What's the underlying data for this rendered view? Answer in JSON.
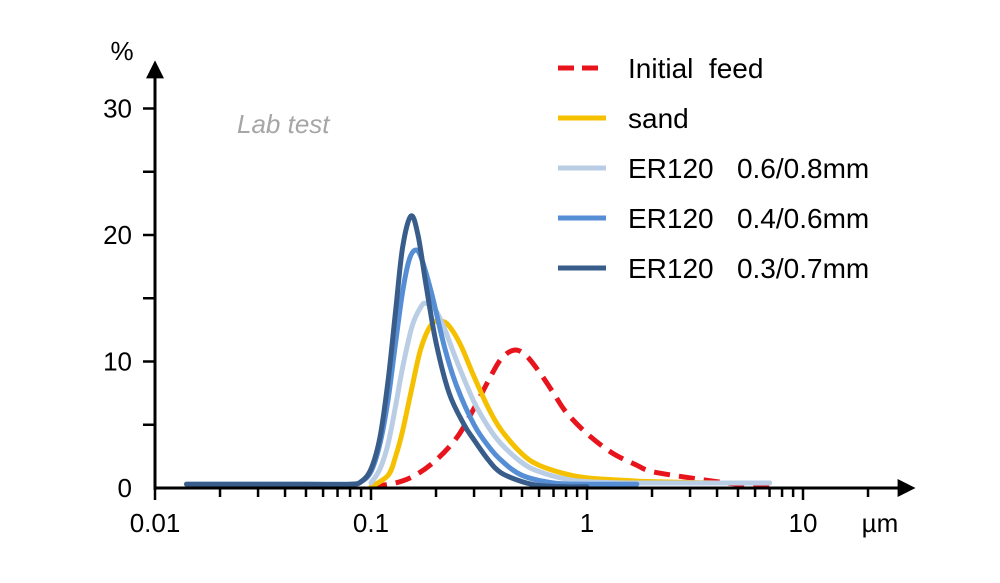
{
  "chart_data": {
    "type": "line",
    "title": "",
    "xlabel": "µm",
    "ylabel": "%",
    "x_scale": "log",
    "xlim": [
      0.01,
      30
    ],
    "ylim": [
      0,
      33
    ],
    "x_ticks": [
      {
        "value": 0.01,
        "label": "0.01"
      },
      {
        "value": 0.1,
        "label": "0.1"
      },
      {
        "value": 1,
        "label": "1"
      },
      {
        "value": 10,
        "label": "10"
      }
    ],
    "y_ticks": [
      {
        "value": 0,
        "label": "0"
      },
      {
        "value": 10,
        "label": "10"
      },
      {
        "value": 20,
        "label": "20"
      },
      {
        "value": 30,
        "label": "30"
      }
    ],
    "grid": false,
    "legend_position": "top-right",
    "annotation": "Lab test",
    "series": [
      {
        "name": "Initial  feed",
        "color": "#e8141c",
        "dashed": true,
        "x": [
          0.1,
          0.13,
          0.16,
          0.2,
          0.25,
          0.3,
          0.35,
          0.4,
          0.46,
          0.52,
          0.6,
          0.7,
          0.8,
          1,
          1.3,
          1.7,
          2,
          3,
          4,
          5,
          7
        ],
        "y": [
          0.1,
          0.4,
          1.0,
          2.2,
          4,
          6.3,
          8.5,
          10.2,
          10.9,
          10.5,
          9.2,
          7.5,
          6,
          4.3,
          2.8,
          1.8,
          1.3,
          0.8,
          0.5,
          0.3,
          0.2
        ]
      },
      {
        "name": "sand",
        "color": "#f5c000",
        "dashed": false,
        "x": [
          0.1,
          0.12,
          0.13,
          0.14,
          0.155,
          0.17,
          0.19,
          0.21,
          0.23,
          0.26,
          0.3,
          0.35,
          0.4,
          0.5,
          0.6,
          0.8,
          1,
          1.5,
          2,
          4,
          7
        ],
        "y": [
          0.1,
          1,
          2.5,
          4.5,
          8,
          11,
          12.9,
          13.2,
          12.8,
          11.3,
          8.8,
          6.3,
          4.6,
          2.7,
          1.8,
          1.1,
          0.8,
          0.6,
          0.5,
          0.4,
          0.4
        ]
      },
      {
        "name": "ER120   0.6/0.8mm",
        "color": "#b9cde5",
        "dashed": false,
        "x": [
          0.1,
          0.11,
          0.12,
          0.13,
          0.14,
          0.155,
          0.17,
          0.18,
          0.2,
          0.22,
          0.25,
          0.3,
          0.35,
          0.4,
          0.5,
          0.6,
          0.8,
          1,
          1.5,
          3,
          7
        ],
        "y": [
          0.4,
          1.5,
          3.5,
          6.5,
          9.5,
          12.8,
          14.3,
          14.6,
          14,
          12.5,
          10,
          6.8,
          4.8,
          3.5,
          2,
          1.3,
          0.7,
          0.5,
          0.4,
          0.4,
          0.4
        ]
      },
      {
        "name": "ER120   0.4/0.6mm",
        "color": "#558ed5",
        "dashed": false,
        "x": [
          0.014,
          0.05,
          0.08,
          0.09,
          0.1,
          0.11,
          0.12,
          0.13,
          0.14,
          0.15,
          0.16,
          0.17,
          0.19,
          0.22,
          0.25,
          0.3,
          0.35,
          0.4,
          0.5,
          0.7,
          1,
          1.7
        ],
        "y": [
          0.3,
          0.3,
          0.3,
          0.5,
          1.3,
          3.5,
          7,
          11.5,
          15.5,
          18,
          18.8,
          18.3,
          15.5,
          11,
          8,
          5,
          3.3,
          2.2,
          1,
          0.4,
          0.3,
          0.3
        ]
      },
      {
        "name": "ER120   0.3/0.7mm",
        "color": "#385d8a",
        "dashed": false,
        "x": [
          0.014,
          0.05,
          0.08,
          0.09,
          0.1,
          0.11,
          0.12,
          0.13,
          0.14,
          0.153,
          0.165,
          0.18,
          0.2,
          0.23,
          0.27,
          0.3,
          0.35,
          0.4,
          0.5,
          0.6,
          0.8,
          1
        ],
        "y": [
          0.3,
          0.3,
          0.3,
          0.5,
          1.5,
          4,
          8.5,
          14,
          19,
          21.5,
          20,
          16,
          11.5,
          7.5,
          5,
          3.8,
          2.2,
          1.2,
          0.5,
          0.2,
          0.1,
          0.1
        ]
      }
    ]
  }
}
